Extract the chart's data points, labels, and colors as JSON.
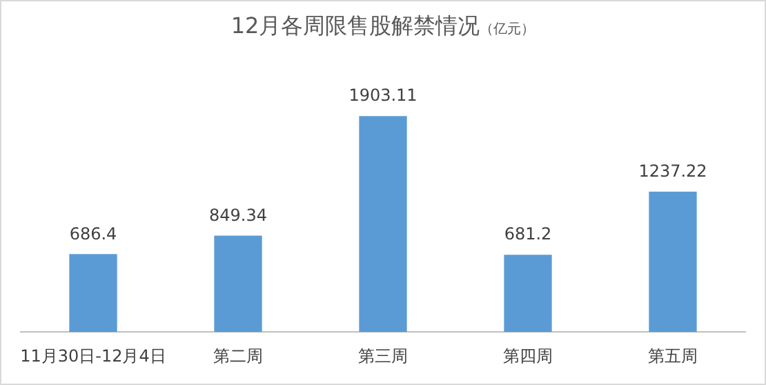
{
  "chart_data": {
    "type": "bar",
    "title": "12月各周限售股解禁情况",
    "subtitle": "（亿元）",
    "categories": [
      "11月30日-12月4日",
      "第二周",
      "第三周",
      "第四周",
      "第五周"
    ],
    "values": [
      686.4,
      849.34,
      1903.11,
      681.2,
      1237.22
    ],
    "color": "#5b9bd5",
    "data_labels": true,
    "grid": false,
    "legend": false
  }
}
